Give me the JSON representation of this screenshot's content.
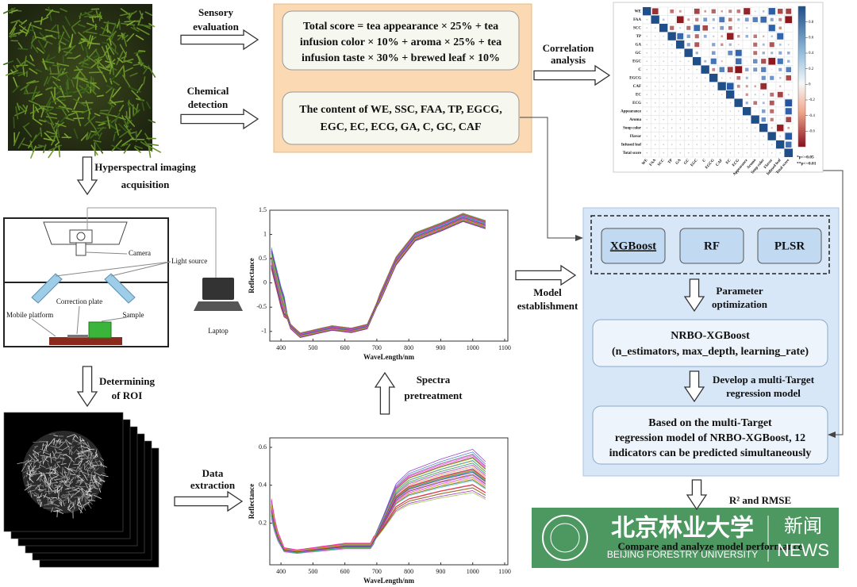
{
  "sensory_label": [
    "Sensory",
    "evaluation"
  ],
  "formula": [
    "Total score = tea appearance × 25% + tea",
    "infusion color × 10% + aroma × 25% + tea",
    "infusion taste × 30% + brewed leaf × 10%"
  ],
  "chemical_label": [
    "Chemical",
    "detection"
  ],
  "chemical": [
    "The content of WE, SSC, FAA, TP, EGCG,",
    "EGC, EC, ECG, GA, C, GC, CAF"
  ],
  "correlation_label": [
    "Correlation",
    "analysis"
  ],
  "correlation_matrix": {
    "labels": [
      "WE",
      "FAA",
      "SCC",
      "TP",
      "GA",
      "GC",
      "EGC",
      "C",
      "EGCG",
      "CAF",
      "EC",
      "ECG",
      "Appearance",
      "Aroma",
      "Soup color",
      "Flavor",
      "Infused leaf",
      "Total score"
    ],
    "colorbar_ticks": [
      0.8,
      0.6,
      0.4,
      0.2,
      0,
      -0.2,
      -0.4,
      -0.6
    ],
    "colorbar_lim": [
      -0.8,
      1
    ],
    "significance": [
      "*p<=0.05",
      "**p<=0.01"
    ]
  },
  "hyperspectral_label": [
    "Hyperspectral imaging",
    "acquisition"
  ],
  "setup": {
    "camera": "Camera",
    "light_source": "Light source",
    "correction_plate": "Correction plate",
    "sample": "Sample",
    "mobile_platform": "Mobile platform",
    "laptop": "Laptop"
  },
  "spectra_raw": {
    "y_label": "Reflectance",
    "x_label": "WaveLength/nm",
    "xlim": [
      365,
      1110
    ],
    "ylim": [
      -1.2,
      1.5
    ],
    "xticks": [
      400,
      500,
      600,
      700,
      800,
      900,
      1000,
      1100
    ],
    "yticks": [
      -1,
      -0.5,
      0,
      0.5,
      1,
      1.5
    ]
  },
  "model_label": [
    "Model",
    "establishment"
  ],
  "models": [
    "XGBoost",
    "RF",
    "PLSR"
  ],
  "parameter_label": [
    "Parameter",
    "optimization"
  ],
  "nrbo": [
    "NRBO-XGBoost",
    "(n_estimators, max_depth, learning_rate)"
  ],
  "develop_label": [
    "Develop a multi-Target",
    "regression model"
  ],
  "result": [
    "Based on the multi-Target",
    "regression model of NRBO-XGBoost, 12",
    "indicators can be predicted simultaneously"
  ],
  "metrics": "R² and RMSE",
  "compare": "Compare and analyze model performance",
  "roi_label": [
    "Determining",
    "of ROI"
  ],
  "extraction_label": [
    "Data",
    "extraction"
  ],
  "pretreatment_label": [
    "Spectra",
    "pretreatment"
  ],
  "spectra_processed": {
    "y_label": "Reflectance",
    "x_label": "WaveLength/nm",
    "xlim": [
      365,
      1110
    ],
    "ylim": [
      -0.02,
      0.65
    ],
    "xticks": [
      400,
      500,
      600,
      700,
      800,
      900,
      1000,
      1100
    ],
    "yticks": [
      0.2,
      0.4,
      0.6
    ]
  },
  "watermark": {
    "name_cn": "北京林业大学",
    "name_en": "BEIJING FORESTRY UNIVERSITY",
    "news_cn": "新闻",
    "news_en": "NEWS"
  }
}
